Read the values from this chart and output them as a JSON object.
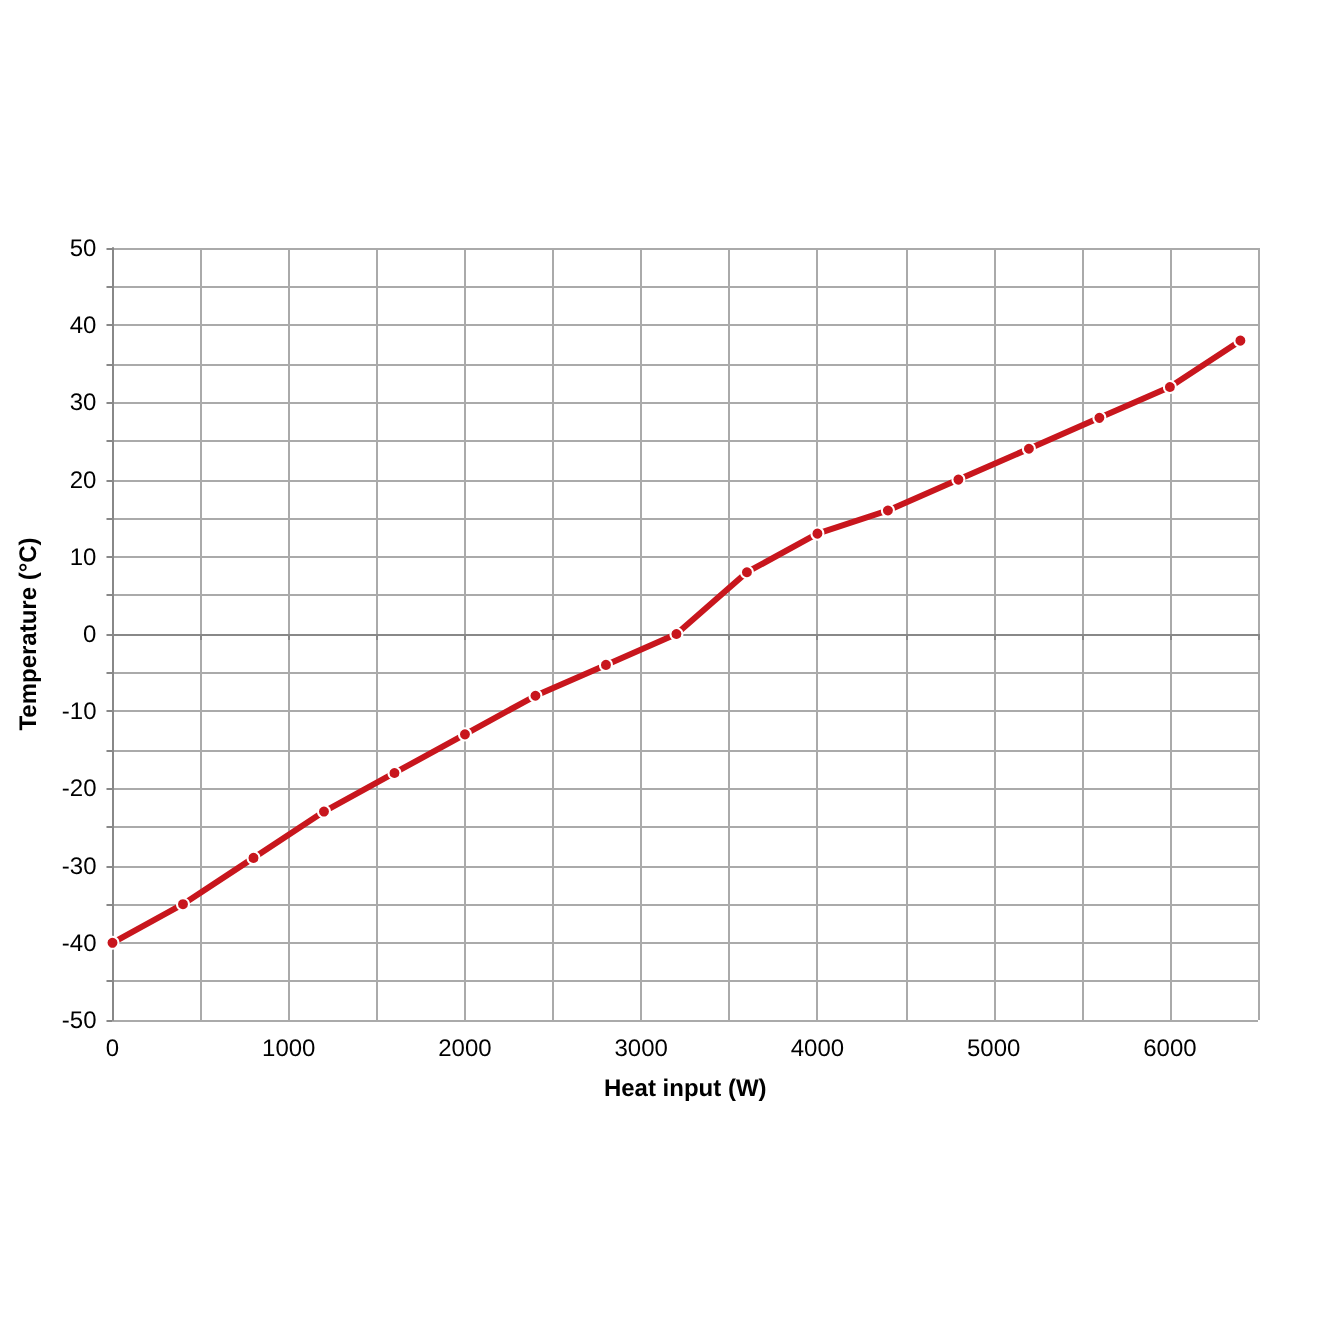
{
  "chart_data": {
    "type": "line",
    "xlabel": "Heat input (W)",
    "ylabel": "Temperature (°C)",
    "x": [
      0,
      400,
      800,
      1200,
      1600,
      2000,
      2400,
      2800,
      3200,
      3600,
      4000,
      4400,
      4800,
      5200,
      5600,
      6000,
      6400
    ],
    "series": [
      {
        "color": "#c8161d",
        "values": [
          -40,
          -35,
          -29,
          -23,
          -18,
          -13,
          -8,
          -4,
          0,
          8,
          13,
          16,
          20,
          24,
          28,
          32,
          38
        ]
      }
    ],
    "xlim": [
      0,
      6500
    ],
    "xticks": [
      0,
      {
        "value": 500,
        "label": null
      },
      1000,
      {
        "value": 1500,
        "label": null
      },
      2000,
      {
        "value": 2500,
        "label": null
      },
      3000,
      {
        "value": 3500,
        "label": null
      },
      4000,
      {
        "value": 4500,
        "label": null
      },
      5000,
      {
        "value": 5500,
        "label": null
      },
      6000,
      {
        "value": 6500,
        "label": null
      }
    ],
    "ylim": [
      -50,
      50
    ],
    "yticks": [
      -50,
      {
        "value": -45,
        "label": null
      },
      -40,
      {
        "value": -35,
        "label": null
      },
      -30,
      {
        "value": -25,
        "label": null
      },
      -20,
      {
        "value": -15,
        "label": null
      },
      -10,
      {
        "value": -5,
        "label": null
      },
      0,
      {
        "value": 5,
        "label": null
      },
      10,
      {
        "value": 15,
        "label": null
      },
      20,
      {
        "value": 25,
        "label": null
      },
      30,
      {
        "value": 35,
        "label": null
      },
      40,
      {
        "value": 45,
        "label": null
      },
      50
    ],
    "grid": true,
    "marker": "circle",
    "line_style": "solid"
  }
}
